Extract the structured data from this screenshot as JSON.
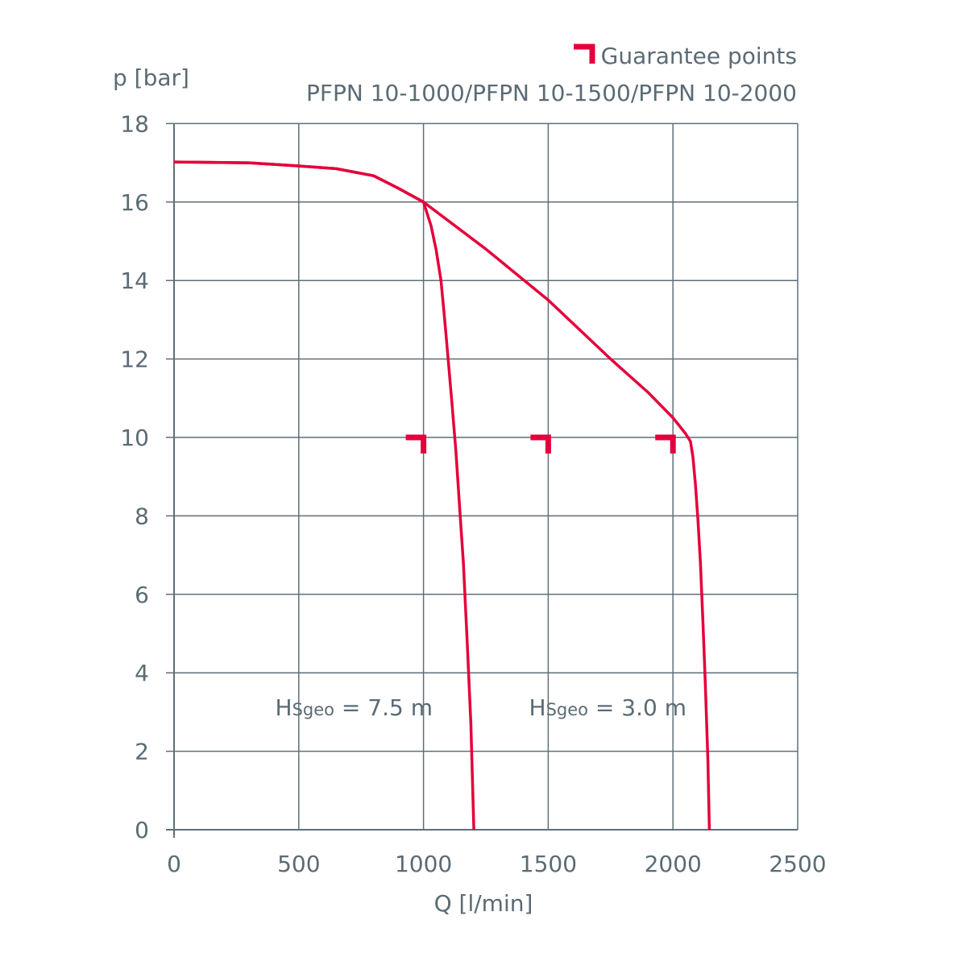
{
  "chart_data": {
    "type": "line",
    "title": "PFPN 10-1000/PFPN 10-1500/PFPN 10-2000",
    "legend": {
      "label": "Guarantee points",
      "placement": "top-right"
    },
    "xlabel": "Q [l/min]",
    "ylabel": "p [bar]",
    "xlim": [
      0,
      2500
    ],
    "ylim": [
      0,
      18
    ],
    "xticks": [
      0,
      500,
      1000,
      1500,
      2000,
      2500
    ],
    "yticks": [
      0,
      2,
      4,
      6,
      8,
      10,
      12,
      14,
      16,
      18
    ],
    "grid": true,
    "colors": {
      "curve": "#e4003a",
      "grid": "#5f6f78",
      "text": "#5b6b74"
    },
    "series": [
      {
        "points": [
          [
            0,
            17.02
          ],
          [
            300,
            17.0
          ],
          [
            500,
            16.92
          ],
          [
            650,
            16.85
          ],
          [
            800,
            16.67
          ],
          [
            900,
            16.35
          ],
          [
            1000,
            16.0
          ],
          [
            1030,
            15.4
          ],
          [
            1050,
            14.8
          ],
          [
            1070,
            14.0
          ],
          [
            1085,
            13.0
          ],
          [
            1100,
            11.9
          ],
          [
            1115,
            10.8
          ],
          [
            1130,
            9.65
          ],
          [
            1145,
            8.2
          ],
          [
            1160,
            6.8
          ],
          [
            1175,
            4.8
          ],
          [
            1190,
            2.7
          ],
          [
            1202,
            0
          ]
        ]
      },
      {
        "points": [
          [
            0,
            17.02
          ],
          [
            300,
            17.0
          ],
          [
            500,
            16.92
          ],
          [
            650,
            16.85
          ],
          [
            800,
            16.67
          ],
          [
            900,
            16.35
          ],
          [
            1000,
            16.0
          ],
          [
            1250,
            14.8
          ],
          [
            1500,
            13.5
          ],
          [
            1750,
            12.0
          ],
          [
            1900,
            11.15
          ],
          [
            2000,
            10.5
          ],
          [
            2050,
            10.1
          ],
          [
            2070,
            9.9
          ],
          [
            2080,
            9.5
          ],
          [
            2090,
            8.8
          ],
          [
            2100,
            7.9
          ],
          [
            2110,
            6.8
          ],
          [
            2120,
            5.3
          ],
          [
            2130,
            3.7
          ],
          [
            2140,
            1.8
          ],
          [
            2146,
            0
          ]
        ]
      }
    ],
    "guarantee_points": [
      [
        1000,
        10
      ],
      [
        1500,
        10
      ],
      [
        2000,
        10
      ]
    ],
    "annotations": [
      {
        "prefix": "H",
        "sub": "Sgeo",
        "suffix": " = 7.5 m",
        "x": 1000,
        "y": 3
      },
      {
        "prefix": "H",
        "sub": "Sgeo",
        "suffix": " = 3.0 m",
        "x": 2000,
        "y": 3
      }
    ]
  }
}
